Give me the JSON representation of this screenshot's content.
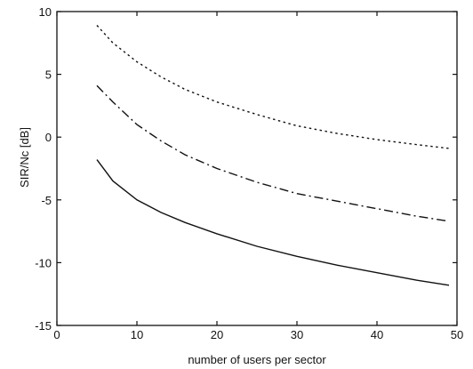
{
  "chart_data": {
    "type": "line",
    "title": "",
    "xlabel": "number of users per sector",
    "ylabel": "SIR/Nc [dB]",
    "xlim": [
      0,
      50
    ],
    "ylim": [
      -15,
      10
    ],
    "xticks": [
      0,
      10,
      20,
      30,
      40,
      50
    ],
    "yticks": [
      -15,
      -10,
      -5,
      0,
      5,
      10
    ],
    "grid": false,
    "legend": "none",
    "series": [
      {
        "line_style": "dotted",
        "x": [
          5,
          7,
          10,
          13,
          16,
          20,
          25,
          30,
          35,
          40,
          45,
          49
        ],
        "y": [
          8.9,
          7.5,
          6.0,
          4.8,
          3.8,
          2.8,
          1.8,
          0.9,
          0.3,
          -0.2,
          -0.6,
          -0.9
        ]
      },
      {
        "line_style": "dash-dot",
        "x": [
          5,
          7,
          10,
          13,
          16,
          20,
          25,
          30,
          35,
          40,
          45,
          49
        ],
        "y": [
          4.1,
          2.8,
          1.0,
          -0.3,
          -1.4,
          -2.5,
          -3.6,
          -4.5,
          -5.1,
          -5.7,
          -6.3,
          -6.7
        ]
      },
      {
        "line_style": "solid",
        "x": [
          5,
          7,
          10,
          13,
          16,
          20,
          25,
          30,
          35,
          40,
          45,
          49
        ],
        "y": [
          -1.8,
          -3.5,
          -5.0,
          -6.0,
          -6.8,
          -7.7,
          -8.7,
          -9.5,
          -10.2,
          -10.8,
          -11.4,
          -11.8
        ]
      }
    ]
  }
}
